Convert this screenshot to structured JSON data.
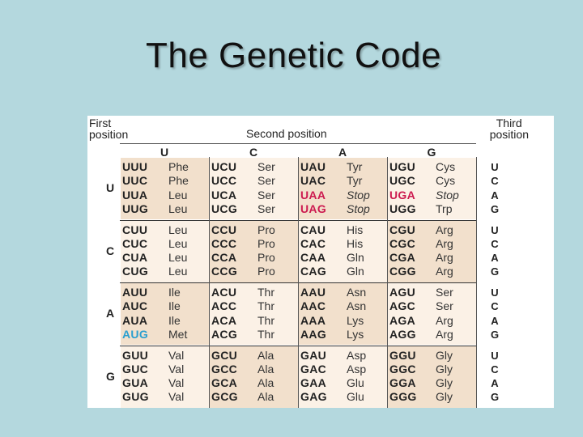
{
  "slide": {
    "title": "The Genetic Code"
  },
  "headers": {
    "first_position": [
      "First",
      "position"
    ],
    "second_position": "Second position",
    "third_position": [
      "Third",
      "position"
    ]
  },
  "bases": [
    "U",
    "C",
    "A",
    "G"
  ],
  "colors": {
    "background": "#b4d8de",
    "cell_dark": "#f2e0cc",
    "cell_light": "#fbf1e6",
    "stop": "#cc1a4f",
    "start": "#2a9fd0"
  },
  "table": [
    {
      "first": "U",
      "cells": [
        [
          [
            "UUU",
            "Phe"
          ],
          [
            "UUC",
            "Phe"
          ],
          [
            "UUA",
            "Leu"
          ],
          [
            "UUG",
            "Leu"
          ]
        ],
        [
          [
            "UCU",
            "Ser"
          ],
          [
            "UCC",
            "Ser"
          ],
          [
            "UCA",
            "Ser"
          ],
          [
            "UCG",
            "Ser"
          ]
        ],
        [
          [
            "UAU",
            "Tyr"
          ],
          [
            "UAC",
            "Tyr"
          ],
          [
            "UAA",
            "Stop"
          ],
          [
            "UAG",
            "Stop"
          ]
        ],
        [
          [
            "UGU",
            "Cys"
          ],
          [
            "UGC",
            "Cys"
          ],
          [
            "UGA",
            "Stop"
          ],
          [
            "UGG",
            "Trp"
          ]
        ]
      ]
    },
    {
      "first": "C",
      "cells": [
        [
          [
            "CUU",
            "Leu"
          ],
          [
            "CUC",
            "Leu"
          ],
          [
            "CUA",
            "Leu"
          ],
          [
            "CUG",
            "Leu"
          ]
        ],
        [
          [
            "CCU",
            "Pro"
          ],
          [
            "CCC",
            "Pro"
          ],
          [
            "CCA",
            "Pro"
          ],
          [
            "CCG",
            "Pro"
          ]
        ],
        [
          [
            "CAU",
            "His"
          ],
          [
            "CAC",
            "His"
          ],
          [
            "CAA",
            "Gln"
          ],
          [
            "CAG",
            "Gln"
          ]
        ],
        [
          [
            "CGU",
            "Arg"
          ],
          [
            "CGC",
            "Arg"
          ],
          [
            "CGA",
            "Arg"
          ],
          [
            "CGG",
            "Arg"
          ]
        ]
      ]
    },
    {
      "first": "A",
      "cells": [
        [
          [
            "AUU",
            "Ile"
          ],
          [
            "AUC",
            "Ile"
          ],
          [
            "AUA",
            "Ile"
          ],
          [
            "AUG",
            "Met"
          ]
        ],
        [
          [
            "ACU",
            "Thr"
          ],
          [
            "ACC",
            "Thr"
          ],
          [
            "ACA",
            "Thr"
          ],
          [
            "ACG",
            "Thr"
          ]
        ],
        [
          [
            "AAU",
            "Asn"
          ],
          [
            "AAC",
            "Asn"
          ],
          [
            "AAA",
            "Lys"
          ],
          [
            "AAG",
            "Lys"
          ]
        ],
        [
          [
            "AGU",
            "Ser"
          ],
          [
            "AGC",
            "Ser"
          ],
          [
            "AGA",
            "Arg"
          ],
          [
            "AGG",
            "Arg"
          ]
        ]
      ]
    },
    {
      "first": "G",
      "cells": [
        [
          [
            "GUU",
            "Val"
          ],
          [
            "GUC",
            "Val"
          ],
          [
            "GUA",
            "Val"
          ],
          [
            "GUG",
            "Val"
          ]
        ],
        [
          [
            "GCU",
            "Ala"
          ],
          [
            "GCC",
            "Ala"
          ],
          [
            "GCA",
            "Ala"
          ],
          [
            "GCG",
            "Ala"
          ]
        ],
        [
          [
            "GAU",
            "Asp"
          ],
          [
            "GAC",
            "Asp"
          ],
          [
            "GAA",
            "Glu"
          ],
          [
            "GAG",
            "Glu"
          ]
        ],
        [
          [
            "GGU",
            "Gly"
          ],
          [
            "GGC",
            "Gly"
          ],
          [
            "GGA",
            "Gly"
          ],
          [
            "GGG",
            "Gly"
          ]
        ]
      ]
    }
  ],
  "stop_codons": [
    "UAA",
    "UAG",
    "UGA"
  ],
  "start_codons": [
    "AUG"
  ]
}
